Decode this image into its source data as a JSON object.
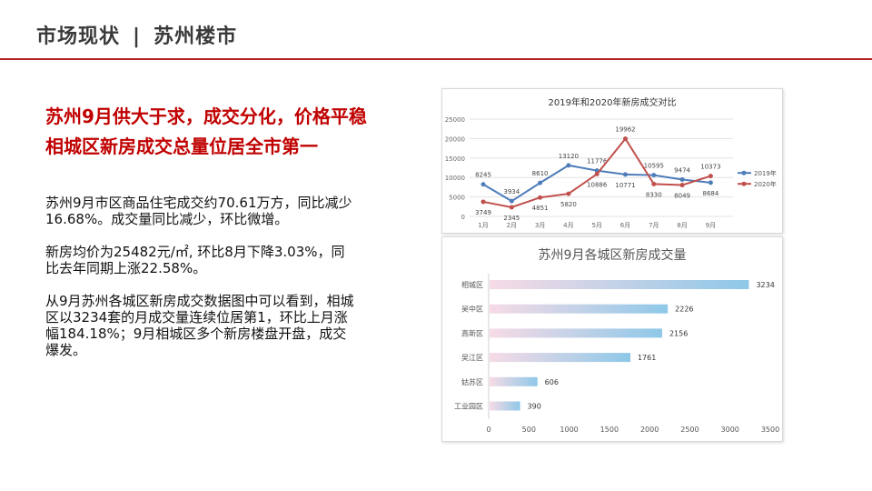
{
  "header": {
    "section": "市场现状",
    "separator": "|",
    "topic": "苏州楼市"
  },
  "headline": [
    "苏州9月供大于求，成交分化，价格平稳",
    "相城区新房成交总量位居全市第一"
  ],
  "paragraphs": [
    "苏州9月市区商品住宅成交约70.61万方，同比减少16.68%。成交量同比减少，环比微增。",
    "新房均价为25482元/㎡, 环比8月下降3.03%，同比去年同期上涨22.58%。",
    "从9月苏州各城区新房成交数据图中可以看到，相城区以3234套的月成交量连续位居第1，环比上月涨幅184.18%；9月相城区多个新房楼盘开盘，成交爆发。"
  ],
  "chart_data": [
    {
      "type": "line",
      "title": "2019年和2020年新房成交对比",
      "categories": [
        "1月",
        "2月",
        "3月",
        "4月",
        "5月",
        "6月",
        "7月",
        "8月",
        "9月"
      ],
      "series": [
        {
          "name": "2019年",
          "color": "#4f7dba",
          "values": [
            8245,
            3934,
            8610,
            13120,
            11776,
            10771,
            10595,
            9474,
            8684
          ]
        },
        {
          "name": "2020年",
          "color": "#c0504d",
          "values": [
            3749,
            2345,
            4851,
            5820,
            10886,
            19962,
            8330,
            8049,
            10373
          ]
        }
      ],
      "ylim": [
        0,
        25000
      ],
      "yticks": [
        0,
        5000,
        10000,
        15000,
        20000,
        25000
      ],
      "grid": true,
      "legend": "right"
    },
    {
      "type": "bar",
      "orientation": "horizontal",
      "title": "苏州9月各城区新房成交量",
      "categories": [
        "相城区",
        "吴中区",
        "高新区",
        "吴江区",
        "姑苏区",
        "工业园区"
      ],
      "values": [
        3234,
        2226,
        2156,
        1761,
        606,
        390
      ],
      "xlim": [
        0,
        3500
      ],
      "xticks": [
        0,
        500,
        1000,
        1500,
        2000,
        2500,
        3000,
        3500
      ],
      "gradient": [
        "#f7dbe6",
        "#8ec8e8"
      ]
    }
  ]
}
